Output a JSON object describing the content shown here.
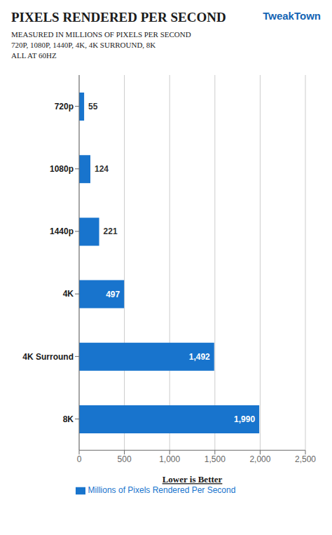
{
  "chart_data": {
    "type": "bar",
    "orientation": "horizontal",
    "title": "PIXELS RENDERED PER SECOND",
    "subtitle": [
      "MEASURED IN MILLIONS OF PIXELS PER SECOND",
      "720P, 1080P, 1440P, 4K, 4K SURROUND, 8K",
      "ALL AT 60HZ"
    ],
    "annotations": [
      "TweakTown"
    ],
    "xlabel": "Lower is Better",
    "categories": [
      "720p",
      "1080p",
      "1440p",
      "4K",
      "4K Surround",
      "8K"
    ],
    "series": [
      {
        "name": "Millions of Pixels Rendered Per Second",
        "color": "#1874CD",
        "values": [
          55,
          124,
          221,
          497,
          1492,
          1990
        ],
        "value_labels": [
          "55",
          "124",
          "221",
          "497",
          "1,492",
          "1,990"
        ]
      }
    ],
    "xlim": [
      0,
      2500
    ],
    "xticks": [
      0,
      500,
      {
        "value": 1000,
        "label": "1,000"
      },
      {
        "value": 1500,
        "label": "1,500"
      },
      {
        "value": 2000,
        "label": "2,000"
      },
      {
        "value": 2500,
        "label": "2,500"
      }
    ],
    "grid": true,
    "legend": "bottom",
    "data_labels": true
  }
}
